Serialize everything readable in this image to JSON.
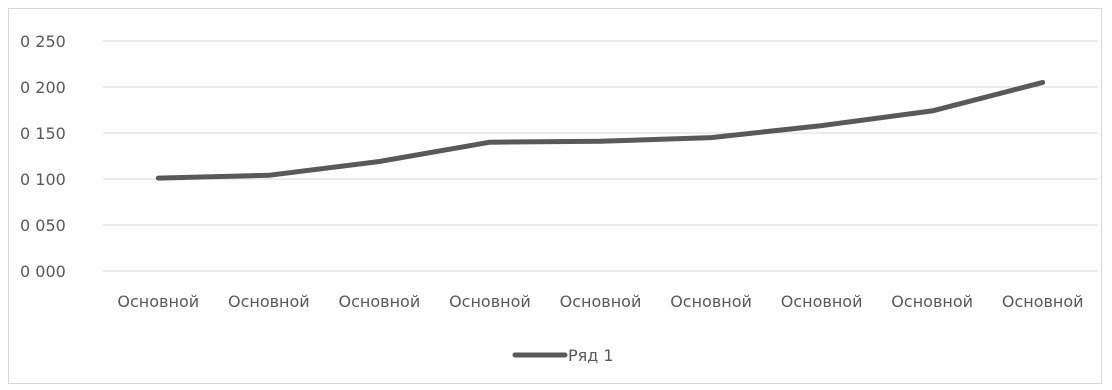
{
  "chart_data": {
    "type": "line",
    "title": "",
    "xlabel": "",
    "ylabel": "",
    "categories": [
      "Основной",
      "Основной",
      "Основной",
      "Основной",
      "Основной",
      "Основной",
      "Основной",
      "Основной",
      "Основной"
    ],
    "series": [
      {
        "name": "Ряд 1",
        "values": [
          0.101,
          0.104,
          0.119,
          0.14,
          0.141,
          0.145,
          0.158,
          0.174,
          0.205
        ],
        "color": "#595959"
      }
    ],
    "ylim": [
      0,
      0.25
    ],
    "yticks": [
      0,
      0.05,
      0.1,
      0.15,
      0.2,
      0.25
    ],
    "ytick_labels": [
      "0 000",
      "0 050",
      "0 100",
      "0 150",
      "0 200",
      "0 250"
    ],
    "grid": true,
    "gridline_color": "#d9d9d9",
    "legend_position": "bottom"
  }
}
